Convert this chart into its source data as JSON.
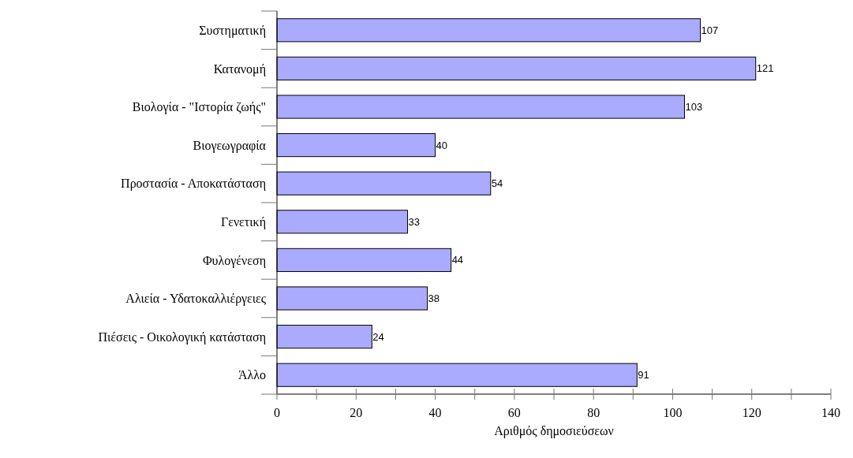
{
  "chart_data": {
    "type": "bar",
    "orientation": "horizontal",
    "xlabel": "Αριθμός δημοσιεύσεων",
    "categories": [
      "Συστηματική",
      "Κατανομή",
      "Βιολογία - \"Ιστορία ζωής\"",
      "Βιογεωγραφία",
      "Προστασία - Αποκατάσταση",
      "Γενετική",
      "Φυλογένεση",
      "Αλιεία - Υδατοκαλλιέργειες",
      "Πιέσεις - Οικολογική κατάσταση",
      "Άλλο"
    ],
    "values": [
      107,
      121,
      103,
      40,
      54,
      33,
      44,
      38,
      24,
      91
    ],
    "color": "#aaaaff",
    "xlim": [
      0,
      140
    ],
    "xticks": [
      0,
      {
        "value": 10,
        "label": null
      },
      20,
      {
        "value": 30,
        "label": null
      },
      40,
      {
        "value": 50,
        "label": null
      },
      60,
      {
        "value": 70,
        "label": null
      },
      80,
      {
        "value": 90,
        "label": null
      },
      100,
      {
        "value": 110,
        "label": null
      },
      120,
      {
        "value": 130,
        "label": null
      },
      140
    ],
    "data_labels": true,
    "grid": false
  }
}
